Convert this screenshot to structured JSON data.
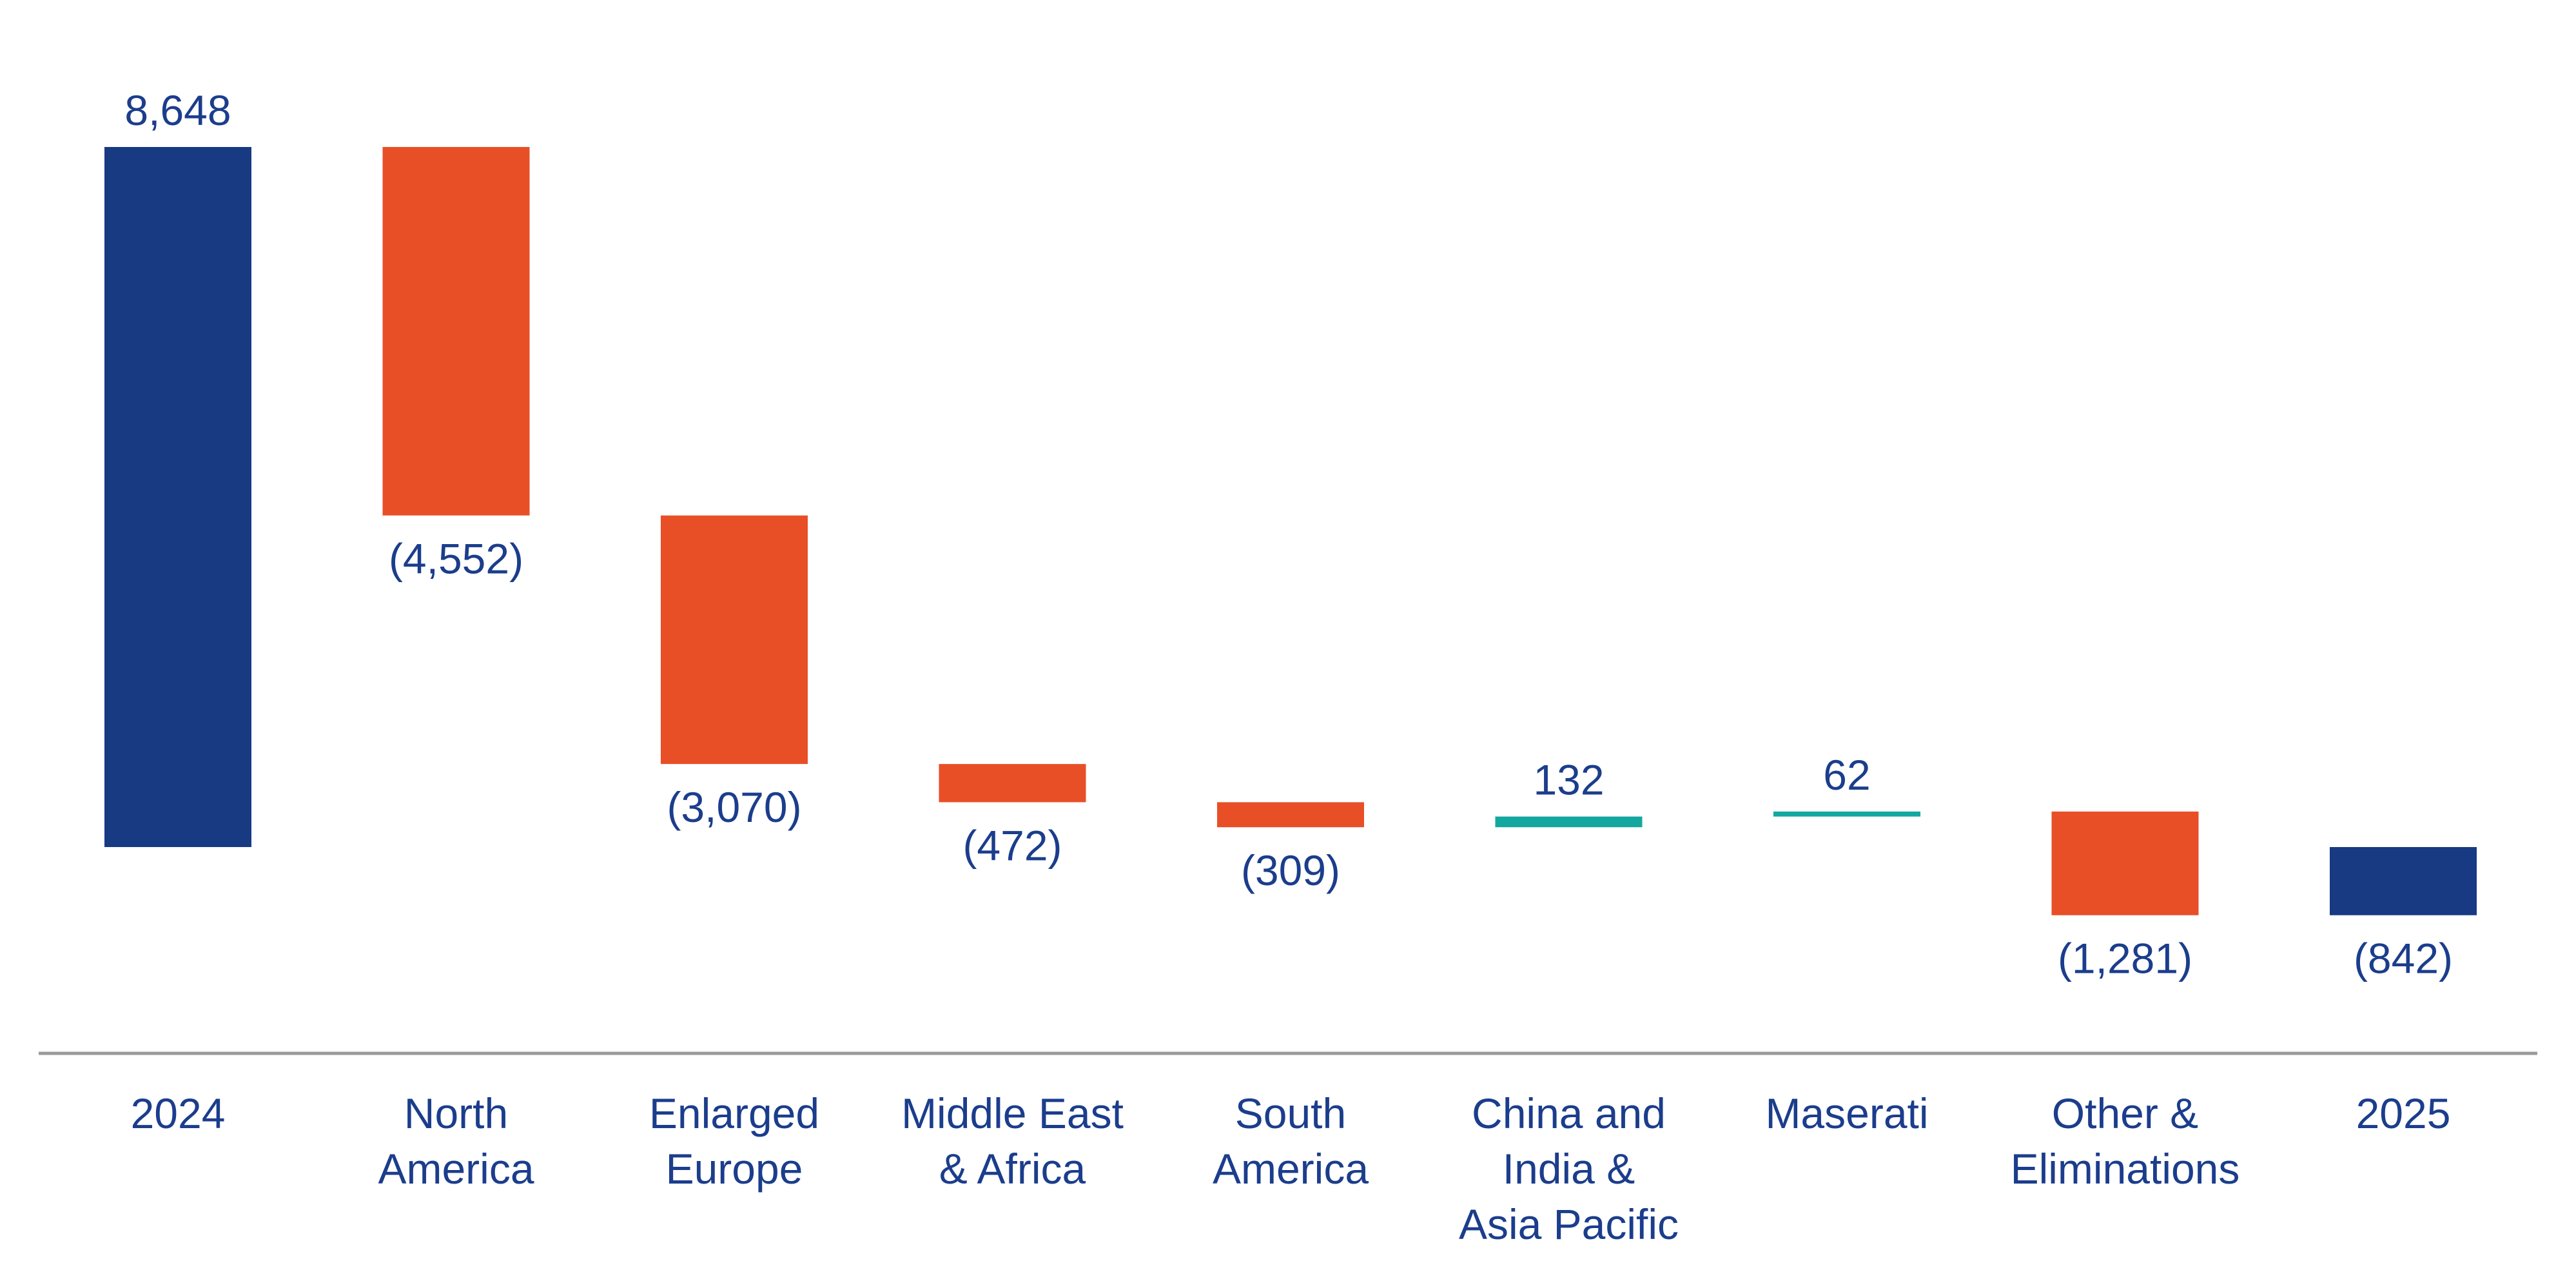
{
  "chart_data": {
    "type": "waterfall",
    "title": "",
    "xlabel": "",
    "ylabel": "",
    "ylim": [
      -1000,
      8648
    ],
    "categories": [
      [
        "2024"
      ],
      [
        "North",
        "America"
      ],
      [
        "Enlarged",
        "Europe"
      ],
      [
        "Middle East",
        "& Africa"
      ],
      [
        "South",
        "America"
      ],
      [
        "China and",
        "India &",
        "Asia Pacific"
      ],
      [
        "Maserati"
      ],
      [
        "Other &",
        "Eliminations"
      ],
      [
        "2025"
      ]
    ],
    "bars": [
      {
        "kind": "total",
        "value": 8648,
        "start": 0,
        "end": 8648,
        "label": "8,648"
      },
      {
        "kind": "delta",
        "value": -4552,
        "start": 8648,
        "end": 4096,
        "label": "(4,552)"
      },
      {
        "kind": "delta",
        "value": -3070,
        "start": 4096,
        "end": 1026,
        "label": "(3,070)"
      },
      {
        "kind": "delta",
        "value": -472,
        "start": 1026,
        "end": 554,
        "label": "(472)"
      },
      {
        "kind": "delta",
        "value": -309,
        "start": 554,
        "end": 245,
        "label": "(309)"
      },
      {
        "kind": "delta",
        "value": 132,
        "start": 245,
        "end": 377,
        "label": "132"
      },
      {
        "kind": "delta",
        "value": 62,
        "start": 377,
        "end": 439,
        "label": "62"
      },
      {
        "kind": "delta",
        "value": -1281,
        "start": 439,
        "end": -842,
        "label": "(1,281)"
      },
      {
        "kind": "total",
        "value": -842,
        "start": 0,
        "end": -842,
        "label": "(842)"
      }
    ],
    "colors": {
      "total": "#173A83",
      "decrease": "#E84F27",
      "increase": "#14A7A0",
      "text": "#1B3D8C",
      "axis": "#9A9A9A"
    }
  }
}
